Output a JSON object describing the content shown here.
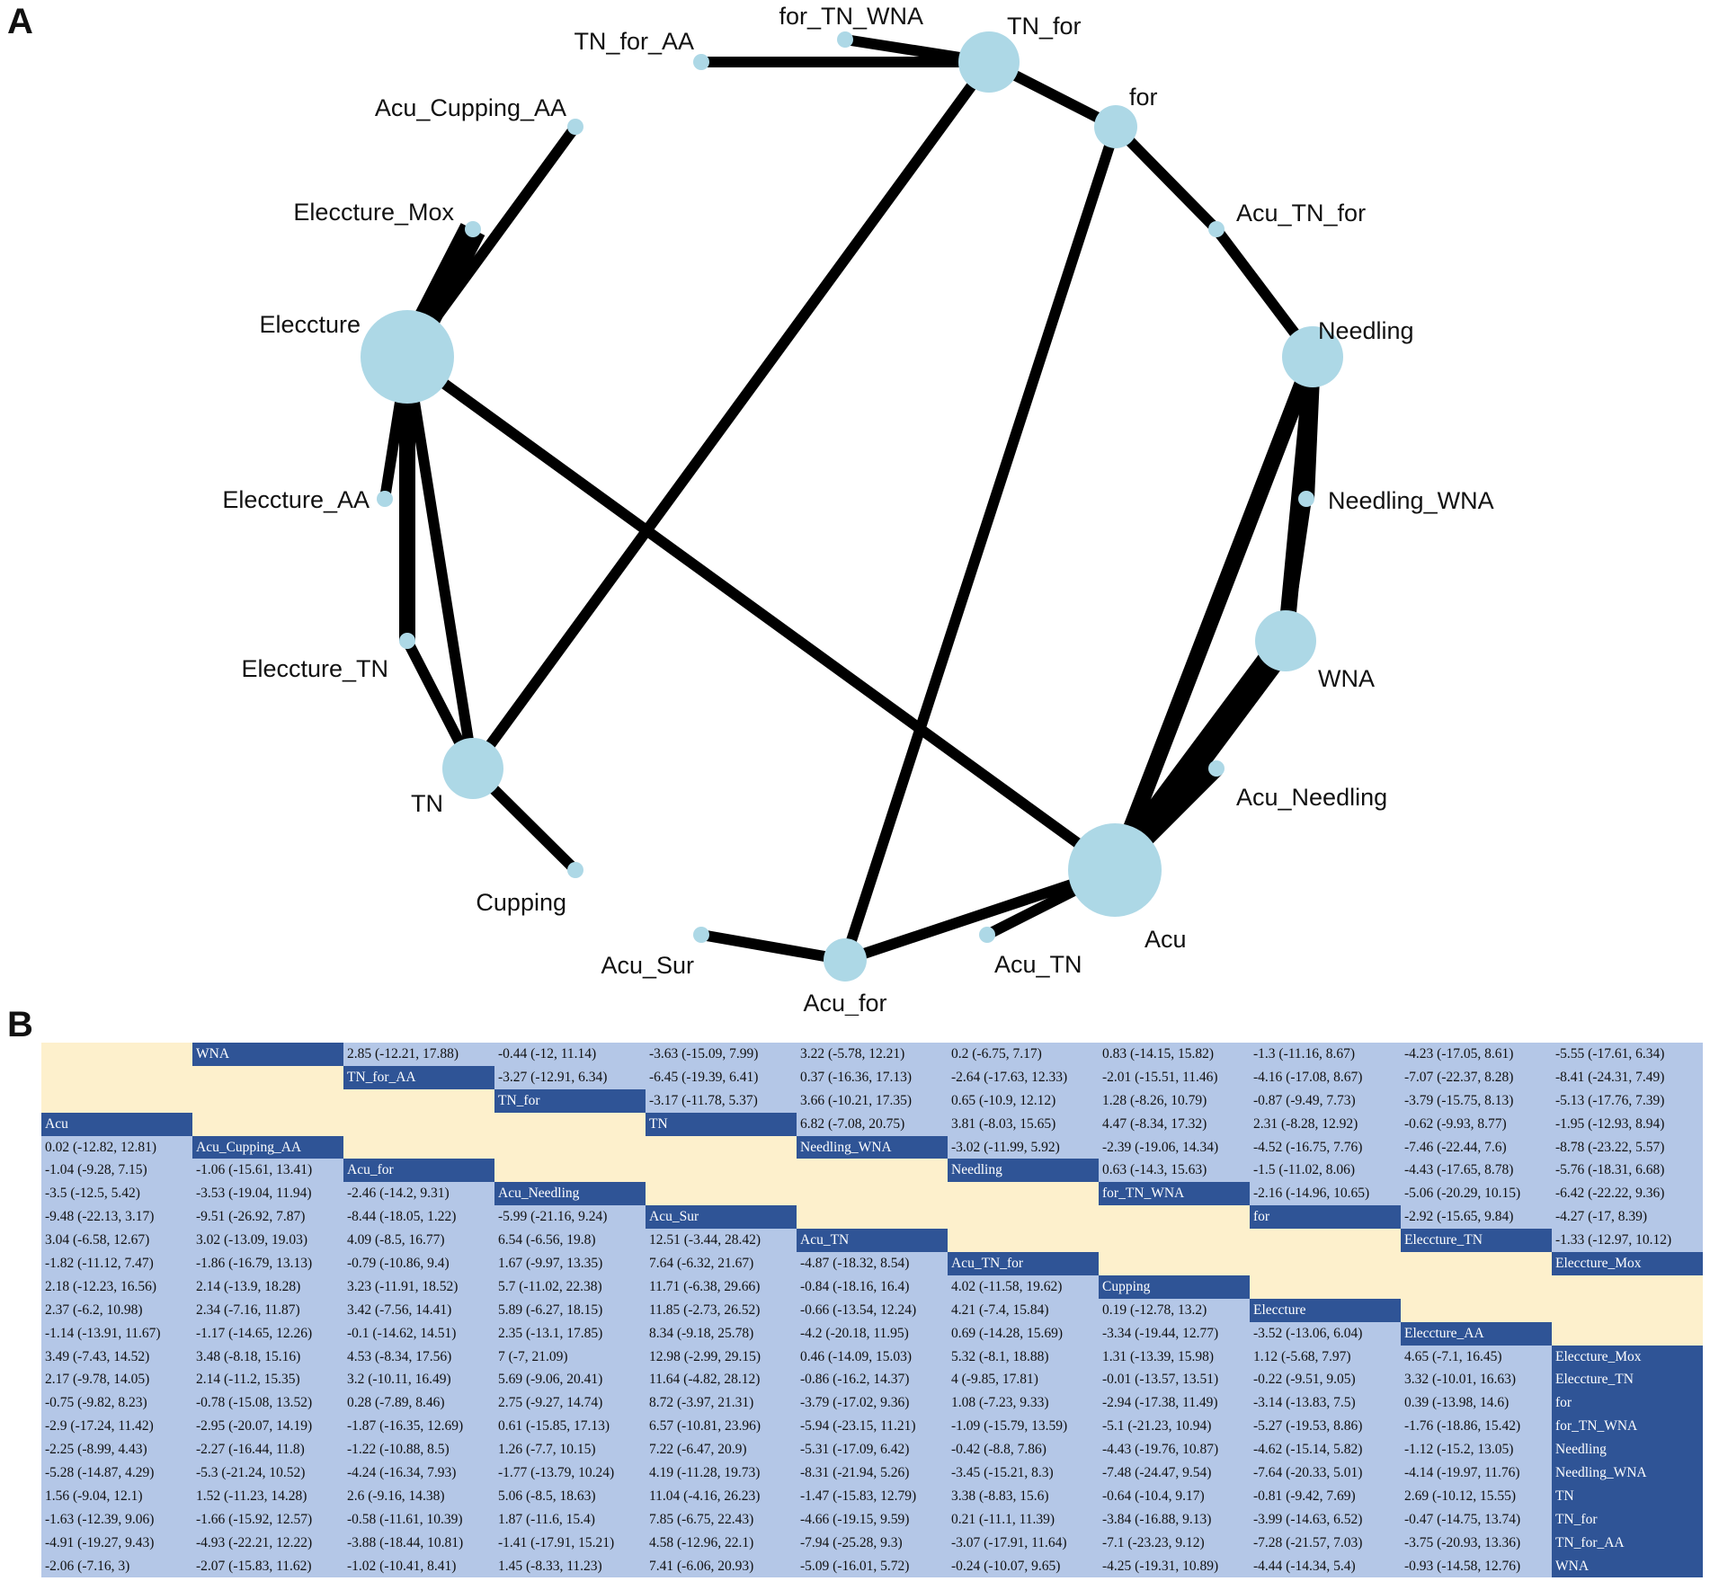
{
  "panels": {
    "a": "A",
    "b": "B"
  },
  "network": {
    "node_color": "#add8e6",
    "edge_color": "#000000",
    "nodes": [
      {
        "id": "TN_for",
        "label": "TN_for",
        "size": "large"
      },
      {
        "id": "for",
        "label": "for",
        "size": "small"
      },
      {
        "id": "Acu_TN_for",
        "label": "Acu_TN_for",
        "size": "tiny"
      },
      {
        "id": "Needling",
        "label": "Needling",
        "size": "large"
      },
      {
        "id": "Needling_WNA",
        "label": "Needling_WNA",
        "size": "tiny"
      },
      {
        "id": "WNA",
        "label": "WNA",
        "size": "large"
      },
      {
        "id": "Acu_Needling",
        "label": "Acu_Needling",
        "size": "tiny"
      },
      {
        "id": "Acu",
        "label": "Acu",
        "size": "largest"
      },
      {
        "id": "Acu_TN",
        "label": "Acu_TN",
        "size": "tiny"
      },
      {
        "id": "Acu_for",
        "label": "Acu_for",
        "size": "small"
      },
      {
        "id": "Acu_Sur",
        "label": "Acu_Sur",
        "size": "tiny"
      },
      {
        "id": "Cupping",
        "label": "Cupping",
        "size": "tiny"
      },
      {
        "id": "TN",
        "label": "TN",
        "size": "large"
      },
      {
        "id": "Eleccture_TN",
        "label": "Eleccture_TN",
        "size": "tiny"
      },
      {
        "id": "Eleccture_AA",
        "label": "Eleccture_AA",
        "size": "tiny"
      },
      {
        "id": "Eleccture",
        "label": "Eleccture",
        "size": "largest"
      },
      {
        "id": "Eleccture_Mox",
        "label": "Eleccture_Mox",
        "size": "tiny"
      },
      {
        "id": "Acu_Cupping_AA",
        "label": "Acu_Cupping_AA",
        "size": "tiny"
      },
      {
        "id": "TN_for_AA",
        "label": "TN_for_AA",
        "size": "tiny"
      },
      {
        "id": "for_TN_WNA",
        "label": "for_TN_WNA",
        "size": "tiny"
      }
    ],
    "edges": [
      {
        "from": "for_TN_WNA",
        "to": "TN_for",
        "weight": "thin"
      },
      {
        "from": "TN_for_AA",
        "to": "TN_for",
        "weight": "thin"
      },
      {
        "from": "TN_for",
        "to": "for",
        "weight": "thin"
      },
      {
        "from": "TN_for",
        "to": "TN",
        "weight": "thin"
      },
      {
        "from": "for",
        "to": "Acu_TN_for",
        "weight": "thin"
      },
      {
        "from": "for",
        "to": "Acu_for",
        "weight": "thin"
      },
      {
        "from": "Acu_TN_for",
        "to": "Needling",
        "weight": "thin"
      },
      {
        "from": "Needling",
        "to": "Needling_WNA",
        "weight": "medium"
      },
      {
        "from": "Needling",
        "to": "WNA",
        "weight": "medium"
      },
      {
        "from": "Needling",
        "to": "Acu",
        "weight": "medium"
      },
      {
        "from": "Needling_WNA",
        "to": "WNA",
        "weight": "thin"
      },
      {
        "from": "WNA",
        "to": "Acu",
        "weight": "heavy"
      },
      {
        "from": "Acu_Needling",
        "to": "Acu",
        "weight": "medium"
      },
      {
        "from": "Acu",
        "to": "Acu_TN",
        "weight": "thin"
      },
      {
        "from": "Acu",
        "to": "Acu_for",
        "weight": "thin"
      },
      {
        "from": "Acu",
        "to": "Eleccture",
        "weight": "thin"
      },
      {
        "from": "Acu_for",
        "to": "Acu_Sur",
        "weight": "thin"
      },
      {
        "from": "TN",
        "to": "Cupping",
        "weight": "thin"
      },
      {
        "from": "TN",
        "to": "Eleccture_TN",
        "weight": "thin"
      },
      {
        "from": "TN",
        "to": "Eleccture",
        "weight": "thin"
      },
      {
        "from": "Eleccture_TN",
        "to": "Eleccture",
        "weight": "medium"
      },
      {
        "from": "Eleccture_AA",
        "to": "Eleccture",
        "weight": "thin"
      },
      {
        "from": "Eleccture_Mox",
        "to": "Eleccture",
        "weight": "heavy"
      },
      {
        "from": "Acu_Cupping_AA",
        "to": "Eleccture",
        "weight": "thin"
      }
    ]
  },
  "league_table": {
    "colors": {
      "header": "#2f5496",
      "value": "#b4c7e7",
      "blank": "#fdf0cc"
    },
    "rows": [
      [
        null,
        "WNA",
        "2.85 (-12.21, 17.88)",
        "-0.44 (-12, 11.14)",
        "-3.63 (-15.09, 7.99)",
        "3.22 (-5.78, 12.21)",
        "0.2 (-6.75, 7.17)",
        "0.83 (-14.15, 15.82)",
        "-1.3 (-11.16, 8.67)",
        "-4.23 (-17.05, 8.61)",
        "-5.55 (-17.61, 6.34)"
      ],
      [
        null,
        null,
        "TN_for_AA",
        "-3.27 (-12.91, 6.34)",
        "-6.45 (-19.39, 6.41)",
        "0.37 (-16.36, 17.13)",
        "-2.64 (-17.63, 12.33)",
        "-2.01 (-15.51, 11.46)",
        "-4.16 (-17.08, 8.67)",
        "-7.07 (-22.37, 8.28)",
        "-8.41 (-24.31, 7.49)"
      ],
      [
        null,
        null,
        null,
        "TN_for",
        "-3.17 (-11.78, 5.37)",
        "3.66 (-10.21, 17.35)",
        "0.65 (-10.9, 12.12)",
        "1.28 (-8.26, 10.79)",
        "-0.87 (-9.49, 7.73)",
        "-3.79 (-15.75, 8.13)",
        "-5.13 (-17.76, 7.39)"
      ],
      [
        "Acu",
        null,
        null,
        null,
        "TN",
        "6.82 (-7.08, 20.75)",
        "3.81 (-8.03, 15.65)",
        "4.47 (-8.34, 17.32)",
        "2.31 (-8.28, 12.92)",
        "-0.62 (-9.93, 8.77)",
        "-1.95 (-12.93, 8.94)"
      ],
      [
        "0.02 (-12.82, 12.81)",
        "Acu_Cupping_AA",
        null,
        null,
        null,
        "Needling_WNA",
        "-3.02 (-11.99, 5.92)",
        "-2.39 (-19.06, 14.34)",
        "-4.52 (-16.75, 7.76)",
        "-7.46 (-22.44, 7.6)",
        "-8.78 (-23.22, 5.57)"
      ],
      [
        "-1.04 (-9.28, 7.15)",
        "-1.06 (-15.61, 13.41)",
        "Acu_for",
        null,
        null,
        null,
        "Needling",
        "0.63 (-14.3, 15.63)",
        "-1.5 (-11.02, 8.06)",
        "-4.43 (-17.65, 8.78)",
        "-5.76 (-18.31, 6.68)"
      ],
      [
        "-3.5 (-12.5, 5.42)",
        "-3.53 (-19.04, 11.94)",
        "-2.46 (-14.2, 9.31)",
        "Acu_Needling",
        null,
        null,
        null,
        "for_TN_WNA",
        "-2.16 (-14.96, 10.65)",
        "-5.06 (-20.29, 10.15)",
        "-6.42 (-22.22, 9.36)"
      ],
      [
        "-9.48 (-22.13, 3.17)",
        "-9.51 (-26.92, 7.87)",
        "-8.44 (-18.05, 1.22)",
        "-5.99 (-21.16, 9.24)",
        "Acu_Sur",
        null,
        null,
        null,
        "for",
        "-2.92 (-15.65, 9.84)",
        "-4.27 (-17, 8.39)"
      ],
      [
        "3.04 (-6.58, 12.67)",
        "3.02 (-13.09, 19.03)",
        "4.09 (-8.5, 16.77)",
        "6.54 (-6.56, 19.8)",
        "12.51 (-3.44, 28.42)",
        "Acu_TN",
        null,
        null,
        null,
        "Eleccture_TN",
        "-1.33 (-12.97, 10.12)"
      ],
      [
        "-1.82 (-11.12, 7.47)",
        "-1.86 (-16.79, 13.13)",
        "-0.79 (-10.86, 9.4)",
        "1.67 (-9.97, 13.35)",
        "7.64 (-6.32, 21.67)",
        "-4.87 (-18.32, 8.54)",
        "Acu_TN_for",
        null,
        null,
        null,
        "Eleccture_Mox"
      ],
      [
        "2.18 (-12.23, 16.56)",
        "2.14 (-13.9, 18.28)",
        "3.23 (-11.91, 18.52)",
        "5.7 (-11.02, 22.38)",
        "11.71 (-6.38, 29.66)",
        "-0.84 (-18.16, 16.4)",
        "4.02 (-11.58, 19.62)",
        "Cupping",
        null,
        null,
        null
      ],
      [
        "2.37 (-6.2, 10.98)",
        "2.34 (-7.16, 11.87)",
        "3.42 (-7.56, 14.41)",
        "5.89 (-6.27, 18.15)",
        "11.85 (-2.73, 26.52)",
        "-0.66 (-13.54, 12.24)",
        "4.21 (-7.4, 15.84)",
        "0.19 (-12.78, 13.2)",
        "Eleccture",
        null,
        null
      ],
      [
        "-1.14 (-13.91, 11.67)",
        "-1.17 (-14.65, 12.26)",
        "-0.1 (-14.62, 14.51)",
        "2.35 (-13.1, 17.85)",
        "8.34 (-9.18, 25.78)",
        "-4.2 (-20.18, 11.95)",
        "0.69 (-14.28, 15.69)",
        "-3.34 (-19.44, 12.77)",
        "-3.52 (-13.06, 6.04)",
        "Eleccture_AA",
        null
      ],
      [
        "3.49 (-7.43, 14.52)",
        "3.48 (-8.18, 15.16)",
        "4.53 (-8.34, 17.56)",
        "7 (-7, 21.09)",
        "12.98 (-2.99, 29.15)",
        "0.46 (-14.09, 15.03)",
        "5.32 (-8.1, 18.88)",
        "1.31 (-13.39, 15.98)",
        "1.12 (-5.68, 7.97)",
        "4.65 (-7.1, 16.45)",
        "Eleccture_Mox"
      ],
      [
        "2.17 (-9.78, 14.05)",
        "2.14 (-11.2, 15.35)",
        "3.2 (-10.11, 16.49)",
        "5.69 (-9.06, 20.41)",
        "11.64 (-4.82, 28.12)",
        "-0.86 (-16.2, 14.37)",
        "4 (-9.85, 17.81)",
        "-0.01 (-13.57, 13.51)",
        "-0.22 (-9.51, 9.05)",
        "3.32 (-10.01, 16.63)",
        "Eleccture_TN"
      ],
      [
        "-0.75 (-9.82, 8.23)",
        "-0.78 (-15.08, 13.52)",
        "0.28 (-7.89, 8.46)",
        "2.75 (-9.27, 14.74)",
        "8.72 (-3.97, 21.31)",
        "-3.79 (-17.02, 9.36)",
        "1.08 (-7.23, 9.33)",
        "-2.94 (-17.38, 11.49)",
        "-3.14 (-13.83, 7.5)",
        "0.39 (-13.98, 14.6)",
        "for"
      ],
      [
        "-2.9 (-17.24, 11.42)",
        "-2.95 (-20.07, 14.19)",
        "-1.87 (-16.35, 12.69)",
        "0.61 (-15.85, 17.13)",
        "6.57 (-10.81, 23.96)",
        "-5.94 (-23.15, 11.21)",
        "-1.09 (-15.79, 13.59)",
        "-5.1 (-21.23, 10.94)",
        "-5.27 (-19.53, 8.86)",
        "-1.76 (-18.86, 15.42)",
        "for_TN_WNA"
      ],
      [
        "-2.25 (-8.99, 4.43)",
        "-2.27 (-16.44, 11.8)",
        "-1.22 (-10.88, 8.5)",
        "1.26 (-7.7, 10.15)",
        "7.22 (-6.47, 20.9)",
        "-5.31 (-17.09, 6.42)",
        "-0.42 (-8.8, 7.86)",
        "-4.43 (-19.76, 10.87)",
        "-4.62 (-15.14, 5.82)",
        "-1.12 (-15.2, 13.05)",
        "Needling"
      ],
      [
        "-5.28 (-14.87, 4.29)",
        "-5.3 (-21.24, 10.52)",
        "-4.24 (-16.34, 7.93)",
        "-1.77 (-13.79, 10.24)",
        "4.19 (-11.28, 19.73)",
        "-8.31 (-21.94, 5.26)",
        "-3.45 (-15.21, 8.3)",
        "-7.48 (-24.47, 9.54)",
        "-7.64 (-20.33, 5.01)",
        "-4.14 (-19.97, 11.76)",
        "Needling_WNA"
      ],
      [
        "1.56 (-9.04, 12.1)",
        "1.52 (-11.23, 14.28)",
        "2.6 (-9.16, 14.38)",
        "5.06 (-8.5, 18.63)",
        "11.04 (-4.16, 26.23)",
        "-1.47 (-15.83, 12.79)",
        "3.38 (-8.83, 15.6)",
        "-0.64 (-10.4, 9.17)",
        "-0.81 (-9.42, 7.69)",
        "2.69 (-10.12, 15.55)",
        "TN"
      ],
      [
        "-1.63 (-12.39, 9.06)",
        "-1.66 (-15.92, 12.57)",
        "-0.58 (-11.61, 10.39)",
        "1.87 (-11.6, 15.4)",
        "7.85 (-6.75, 22.43)",
        "-4.66 (-19.15, 9.59)",
        "0.21 (-11.1, 11.39)",
        "-3.84 (-16.88, 9.13)",
        "-3.99 (-14.63, 6.52)",
        "-0.47 (-14.75, 13.74)",
        "TN_for"
      ],
      [
        "-4.91 (-19.27, 9.43)",
        "-4.93 (-22.21, 12.22)",
        "-3.88 (-18.44, 10.81)",
        "-1.41 (-17.91, 15.21)",
        "4.58 (-12.96, 22.1)",
        "-7.94 (-25.28, 9.3)",
        "-3.07 (-17.91, 11.64)",
        "-7.1 (-23.23, 9.12)",
        "-7.28 (-21.57, 7.03)",
        "-3.75 (-20.93, 13.36)",
        "TN_for_AA"
      ],
      [
        "-2.06 (-7.16, 3)",
        "-2.07 (-15.83, 11.62)",
        "-1.02 (-10.41, 8.41)",
        "1.45 (-8.33, 11.23)",
        "7.41 (-6.06, 20.93)",
        "-5.09 (-16.01, 5.72)",
        "-0.24 (-10.07, 9.65)",
        "-4.25 (-19.31, 10.89)",
        "-4.44 (-14.34, 5.4)",
        "-0.93 (-14.58, 12.76)",
        "WNA"
      ]
    ]
  }
}
